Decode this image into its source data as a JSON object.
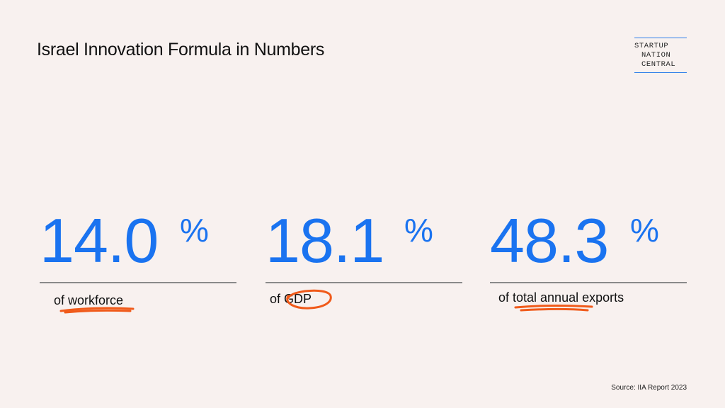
{
  "header": {
    "title": "Israel Innovation Formula in Numbers"
  },
  "logo": {
    "line1": "STARTUP",
    "line2": "NATION",
    "line3": "CENTRAL"
  },
  "stats": [
    {
      "value": "14.0",
      "unit": "%",
      "caption_prefix": "of ",
      "caption_highlight": "workforce",
      "caption_suffix": ""
    },
    {
      "value": "18.1",
      "unit": "%",
      "caption_prefix": "of ",
      "caption_highlight": "GDP",
      "caption_suffix": ""
    },
    {
      "value": "48.3",
      "unit": "%",
      "caption_prefix": "of ",
      "caption_highlight": "total annual",
      "caption_suffix": " exports"
    }
  ],
  "footer": {
    "source": "Source: IIA Report 2023"
  },
  "colors": {
    "accent": "#1a73f0",
    "scribble": "#f05a1a",
    "background": "#f8f1ef"
  }
}
